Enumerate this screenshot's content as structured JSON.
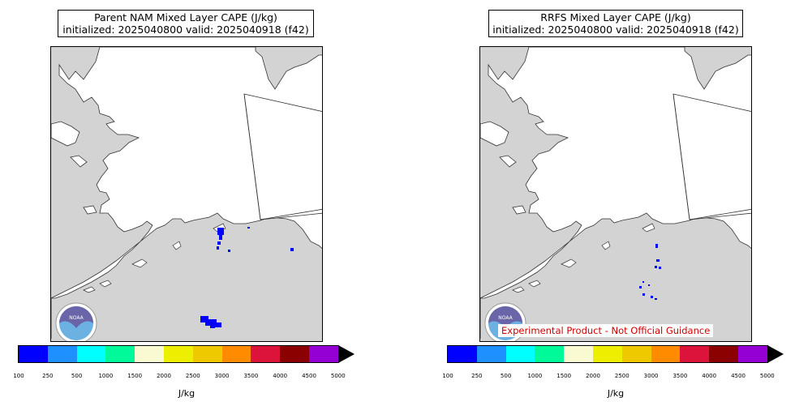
{
  "panels": [
    {
      "title_line1": "Parent NAM Mixed Layer CAPE (J/kg)",
      "title_line2": "initialized: 2025040800 valid: 2025040918 (f42)",
      "noaa_text": "NOAA"
    },
    {
      "title_line1": "RRFS Mixed Layer CAPE (J/kg)",
      "title_line2": "initialized: 2025040800 valid: 2025040918 (f42)",
      "noaa_text": "NOAA",
      "disclaimer": "Experimental Product - Not Official Guidance"
    }
  ],
  "colorbar": {
    "ticks": [
      "100",
      "250",
      "500",
      "1000",
      "1500",
      "2000",
      "2500",
      "3000",
      "3500",
      "4000",
      "4500",
      "5000"
    ],
    "colors": [
      "#0000ff",
      "#1e90ff",
      "#00ffff",
      "#00fa9a",
      "#fafad2",
      "#eeee00",
      "#eec900",
      "#ff8c00",
      "#dc143c",
      "#8b0000",
      "#9400d3"
    ],
    "extend_color": "#000000",
    "unit_label": "J/kg"
  },
  "map_colors": {
    "ocean_and_foreign_land": "#d3d3d3",
    "alaska_land": "#ffffff",
    "cape_low": "#0000ff"
  }
}
